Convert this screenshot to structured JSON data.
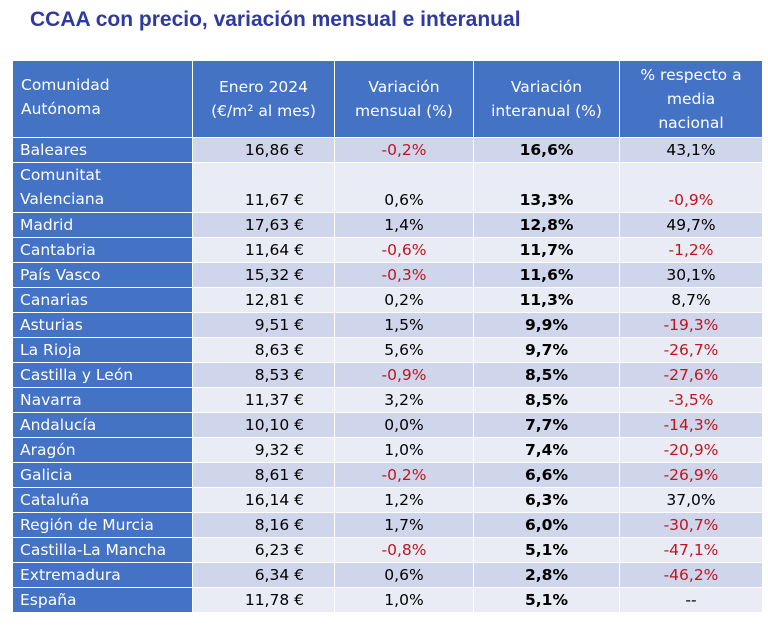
{
  "title": "CCAA con precio, variación mensual e interanual",
  "headers": {
    "region": [
      "Comunidad",
      "Autónoma"
    ],
    "price": [
      "Enero 2024",
      "(€/m² al mes)"
    ],
    "monthly": [
      "Variación",
      "mensual (%)"
    ],
    "yearly": [
      "Variación",
      "interanual (%)"
    ],
    "national": [
      "% respecto a",
      "media",
      "nacional"
    ]
  },
  "colors": {
    "header_bg": "#4472c4",
    "row_odd": "#cfd5ea",
    "row_even": "#e9ebf5",
    "negative": "#c0141e",
    "title": "#2e3a9e"
  },
  "rows": [
    {
      "region": "Baleares",
      "price": "16,86 €",
      "monthly": "-0,2%",
      "yearly": "16,6%",
      "national": "43,1%"
    },
    {
      "region": "Comunitat Valenciana",
      "price": "11,67 €",
      "monthly": "0,6%",
      "yearly": "13,3%",
      "national": "-0,9%"
    },
    {
      "region": "Madrid",
      "price": "17,63 €",
      "monthly": "1,4%",
      "yearly": "12,8%",
      "national": "49,7%"
    },
    {
      "region": "Cantabria",
      "price": "11,64 €",
      "monthly": "-0,6%",
      "yearly": "11,7%",
      "national": "-1,2%"
    },
    {
      "region": "País Vasco",
      "price": "15,32 €",
      "monthly": "-0,3%",
      "yearly": "11,6%",
      "national": "30,1%"
    },
    {
      "region": "Canarias",
      "price": "12,81 €",
      "monthly": "0,2%",
      "yearly": "11,3%",
      "national": "8,7%"
    },
    {
      "region": "Asturias",
      "price": "9,51 €",
      "monthly": "1,5%",
      "yearly": "9,9%",
      "national": "-19,3%"
    },
    {
      "region": "La Rioja",
      "price": "8,63 €",
      "monthly": "5,6%",
      "yearly": "9,7%",
      "national": "-26,7%"
    },
    {
      "region": "Castilla y León",
      "price": "8,53 €",
      "monthly": "-0,9%",
      "yearly": "8,5%",
      "national": "-27,6%"
    },
    {
      "region": "Navarra",
      "price": "11,37 €",
      "monthly": "3,2%",
      "yearly": "8,5%",
      "national": "-3,5%"
    },
    {
      "region": "Andalucía",
      "price": "10,10 €",
      "monthly": "0,0%",
      "yearly": "7,7%",
      "national": "-14,3%"
    },
    {
      "region": "Aragón",
      "price": "9,32 €",
      "monthly": "1,0%",
      "yearly": "7,4%",
      "national": "-20,9%"
    },
    {
      "region": "Galicia",
      "price": "8,61 €",
      "monthly": "-0,2%",
      "yearly": "6,6%",
      "national": "-26,9%"
    },
    {
      "region": "Cataluña",
      "price": "16,14 €",
      "monthly": "1,2%",
      "yearly": "6,3%",
      "national": "37,0%"
    },
    {
      "region": "Región de Murcia",
      "price": "8,16 €",
      "monthly": "1,7%",
      "yearly": "6,0%",
      "national": "-30,7%"
    },
    {
      "region": "Castilla-La Mancha",
      "price": "6,23 €",
      "monthly": "-0,8%",
      "yearly": "5,1%",
      "national": "-47,1%"
    },
    {
      "region": "Extremadura",
      "price": "6,34 €",
      "monthly": "0,6%",
      "yearly": "2,8%",
      "national": "-46,2%"
    },
    {
      "region": "España",
      "price": "11,78 €",
      "monthly": "1,0%",
      "yearly": "5,1%",
      "national": "--"
    }
  ]
}
